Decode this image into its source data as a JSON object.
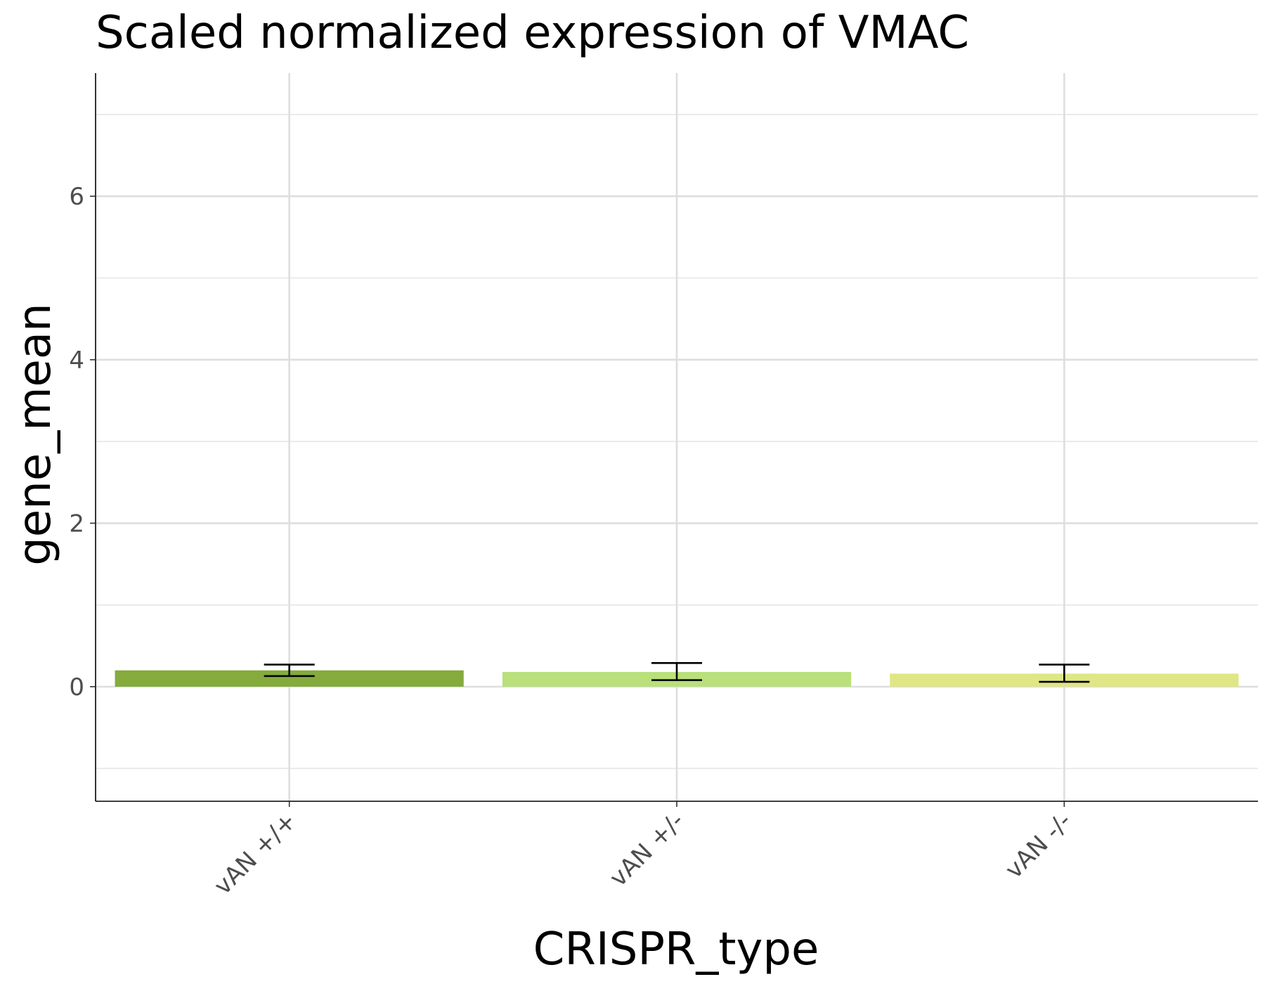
{
  "chart_data": {
    "type": "bar",
    "title": "Scaled normalized expression of VMAC",
    "xlabel": "CRISPR_type",
    "ylabel": "gene_mean",
    "categories": [
      "vAN +/+",
      "vAN +/-",
      "vAN -/-"
    ],
    "values": [
      0.2,
      0.18,
      0.16
    ],
    "error_low": [
      0.13,
      0.08,
      0.06
    ],
    "error_high": [
      0.27,
      0.29,
      0.27
    ],
    "colors": [
      "#84ab3c",
      "#b9e07a",
      "#dfe685"
    ],
    "ylim": [
      -1.4,
      7.5
    ],
    "yticks": [
      0,
      2,
      4,
      6
    ],
    "yticks_minor": [
      -1,
      1,
      3,
      5,
      7
    ],
    "grid": true,
    "legend": "none"
  }
}
